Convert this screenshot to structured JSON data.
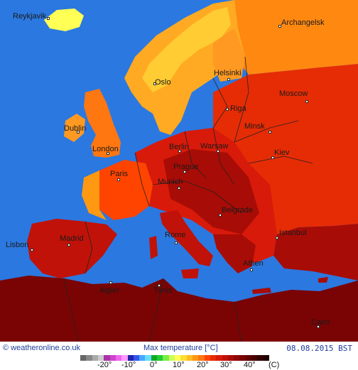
{
  "map": {
    "title": "Max temperature [°C]",
    "credit": "© weatheronline.co.uk",
    "date": "08.08.2015 BST",
    "colors": {
      "sea": "#2b78e0",
      "iceland": "#ffff55",
      "scandinavia_north": "#ffcc33",
      "scandinavia_south": "#ffaa22",
      "uk": "#ff9922",
      "russia_north": "#ff8811",
      "warm": "#ff4400",
      "hot": "#d81a0a",
      "very_hot": "#9c0b06",
      "desert": "#7a0404",
      "border": "#222222"
    }
  },
  "cities": [
    {
      "name": "Reykjavik",
      "label": "Reykjavik"
    },
    {
      "name": "Archangelsk",
      "label": "Archangelsk"
    },
    {
      "name": "Oslo",
      "label": "Oslo"
    },
    {
      "name": "Helsinki",
      "label": "Helsinki"
    },
    {
      "name": "Moscow",
      "label": "Moscow"
    },
    {
      "name": "Riga",
      "label": "Riga"
    },
    {
      "name": "Minsk",
      "label": "Minsk"
    },
    {
      "name": "Dublin",
      "label": "Dublin"
    },
    {
      "name": "London",
      "label": "London"
    },
    {
      "name": "Berlin",
      "label": "Berlin"
    },
    {
      "name": "Warsaw",
      "label": "Warsaw"
    },
    {
      "name": "Kiev",
      "label": "Kiev"
    },
    {
      "name": "Paris",
      "label": "Paris"
    },
    {
      "name": "Prague",
      "label": "Prague"
    },
    {
      "name": "Munich",
      "label": "Munich"
    },
    {
      "name": "Belgrade",
      "label": "Belgrade"
    },
    {
      "name": "Madrid",
      "label": "Madrid"
    },
    {
      "name": "Lisbon",
      "label": "Lisbon"
    },
    {
      "name": "Rome",
      "label": "Rome"
    },
    {
      "name": "Istanbul",
      "label": "Istanbul"
    },
    {
      "name": "Athen",
      "label": "Athen"
    },
    {
      "name": "Algier",
      "label": "Algier"
    },
    {
      "name": "Tunis",
      "label": "Tunis"
    },
    {
      "name": "Cairo",
      "label": "Cairo"
    }
  ],
  "legend": {
    "ticks": [
      "-20°",
      "-10°",
      "0°",
      "10°",
      "20°",
      "30°",
      "40°"
    ],
    "unit": "(C)",
    "colors": [
      "#666666",
      "#888888",
      "#aaaaaa",
      "#cccccc",
      "#aa33aa",
      "#cc44cc",
      "#ee66ee",
      "#ff99ff",
      "#2222aa",
      "#3355ee",
      "#44aaff",
      "#66ddff",
      "#11aa22",
      "#22cc33",
      "#77ee44",
      "#ccff55",
      "#ffff55",
      "#ffdd33",
      "#ffbb22",
      "#ff9911",
      "#ff7711",
      "#ff4400",
      "#e62c05",
      "#d81a0a",
      "#c01208",
      "#a80c06",
      "#900804",
      "#780404",
      "#600202",
      "#480000",
      "#300000",
      "#200000"
    ]
  }
}
